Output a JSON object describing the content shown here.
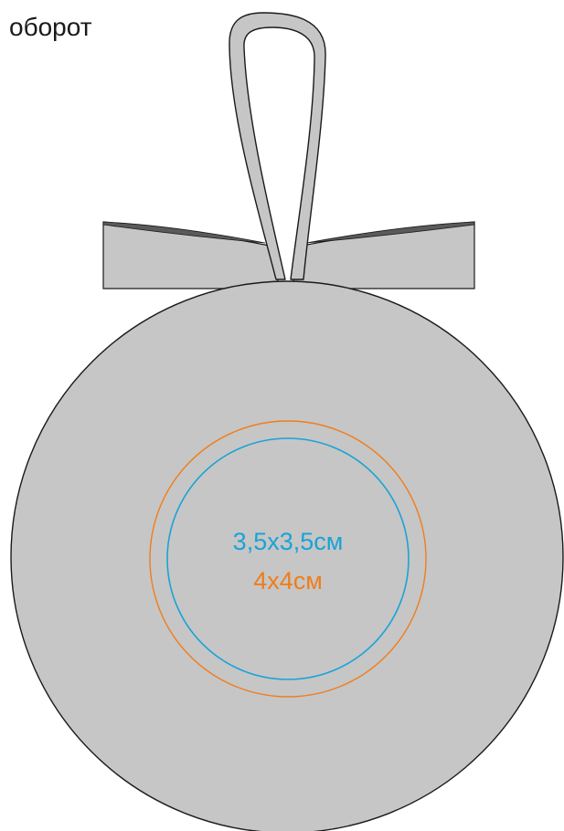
{
  "title": "оборот",
  "labels": {
    "inner_size": "3,5x3,5см",
    "outer_size": "4x4см"
  },
  "colors": {
    "ornament_fill": "#c6c6c6",
    "outline": "#1a1a1a",
    "ribbon_shadow": "#5a5a5a",
    "inner_circle": "#1aa3d6",
    "outer_circle": "#f07d1a",
    "background": "#ffffff"
  }
}
